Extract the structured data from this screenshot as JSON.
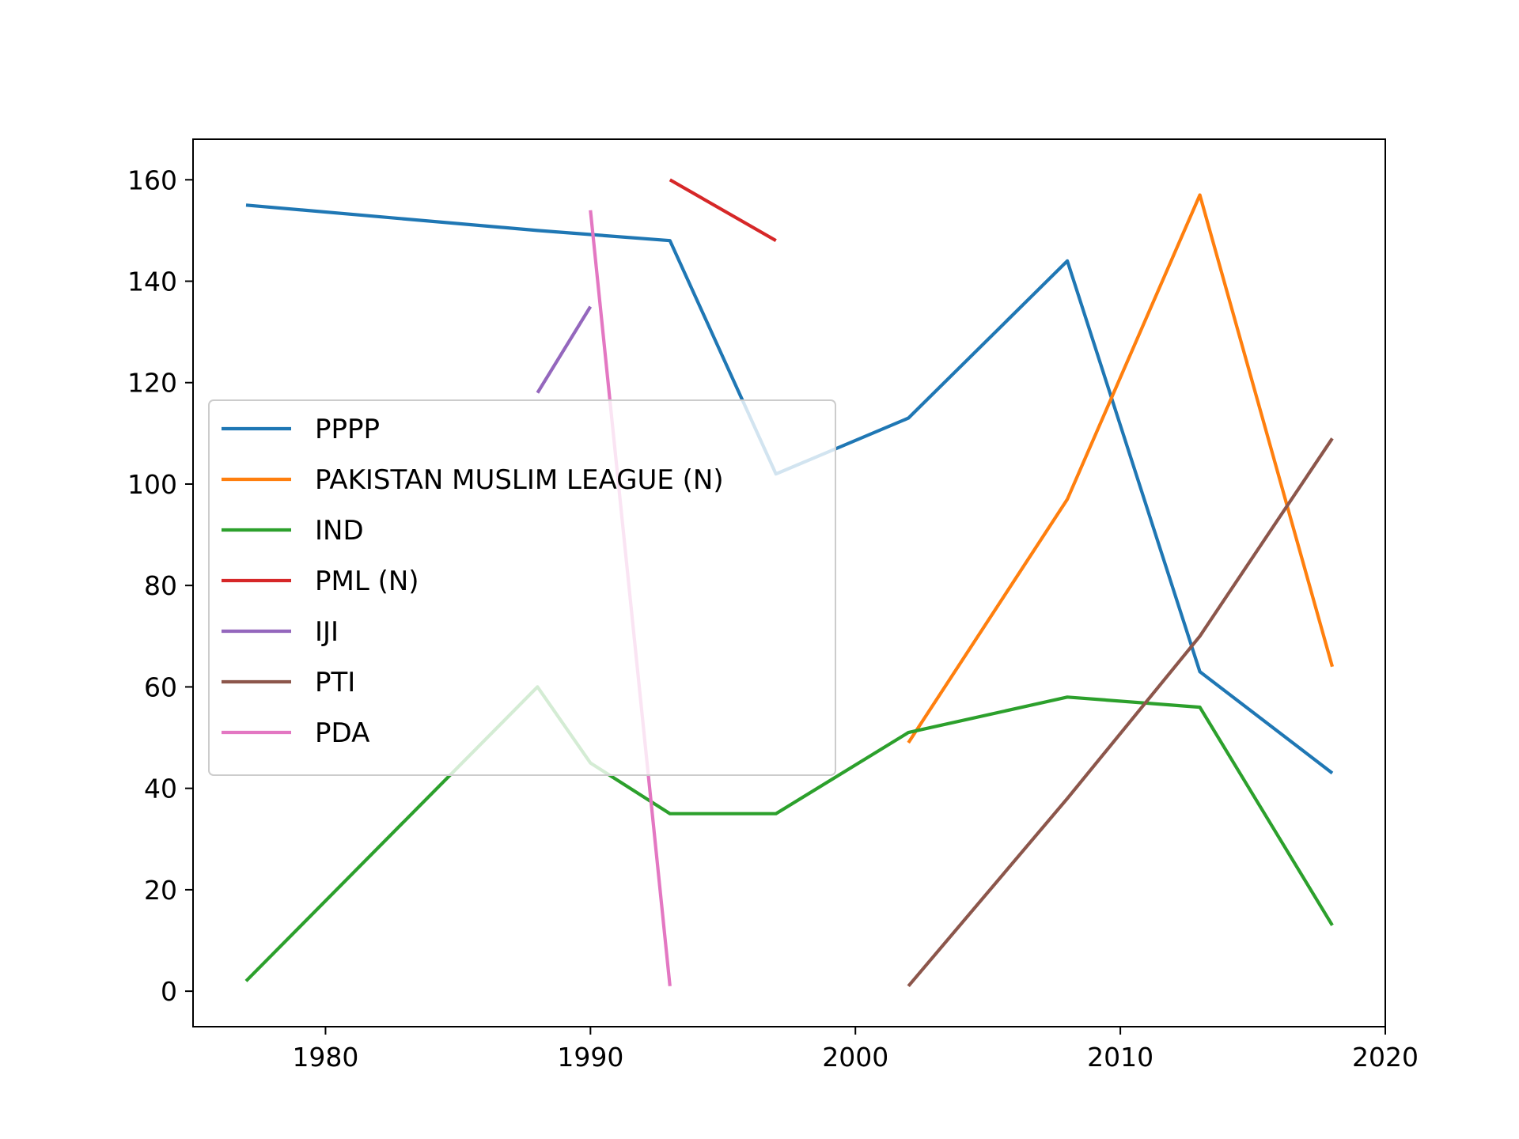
{
  "chart_data": {
    "type": "line",
    "title": "",
    "xlabel": "",
    "ylabel": "",
    "xlim": [
      1975,
      2020
    ],
    "ylim": [
      -7,
      168
    ],
    "x_ticks": [
      1980,
      1990,
      2000,
      2010,
      2020
    ],
    "x_tick_labels": [
      "1980",
      "1990",
      "2000",
      "2010",
      "2020"
    ],
    "y_ticks": [
      0,
      20,
      40,
      60,
      80,
      100,
      120,
      140,
      160
    ],
    "y_tick_labels": [
      "0",
      "20",
      "40",
      "60",
      "80",
      "100",
      "120",
      "140",
      "160"
    ],
    "grid": false,
    "legend_position": "center-left",
    "series": [
      {
        "name": "PPPP",
        "color": "#1f77b4",
        "x": [
          1977,
          1988,
          1993,
          1997,
          2002,
          2008,
          2013,
          2018
        ],
        "y": [
          155,
          150,
          148,
          102,
          113,
          144,
          63,
          43
        ]
      },
      {
        "name": "PAKISTAN MUSLIM LEAGUE (N)",
        "color": "#ff7f0e",
        "x": [
          2002,
          2008,
          2013,
          2018
        ],
        "y": [
          49,
          97,
          157,
          64
        ]
      },
      {
        "name": "IND",
        "color": "#2ca02c",
        "x": [
          1977,
          1988,
          1990,
          1993,
          1997,
          2002,
          2008,
          2013,
          2018
        ],
        "y": [
          2,
          60,
          45,
          35,
          35,
          51,
          58,
          56,
          13
        ]
      },
      {
        "name": "PML (N)",
        "color": "#d62728",
        "x": [
          1993,
          1997
        ],
        "y": [
          160,
          148
        ]
      },
      {
        "name": "IJI",
        "color": "#9467bd",
        "x": [
          1988,
          1990
        ],
        "y": [
          118,
          135
        ]
      },
      {
        "name": "PTI",
        "color": "#8c564b",
        "x": [
          2002,
          2008,
          2013,
          2018
        ],
        "y": [
          1,
          38,
          70,
          109
        ]
      },
      {
        "name": "PDA",
        "color": "#e377c2",
        "x": [
          1990,
          1993
        ],
        "y": [
          154,
          1
        ]
      }
    ]
  }
}
